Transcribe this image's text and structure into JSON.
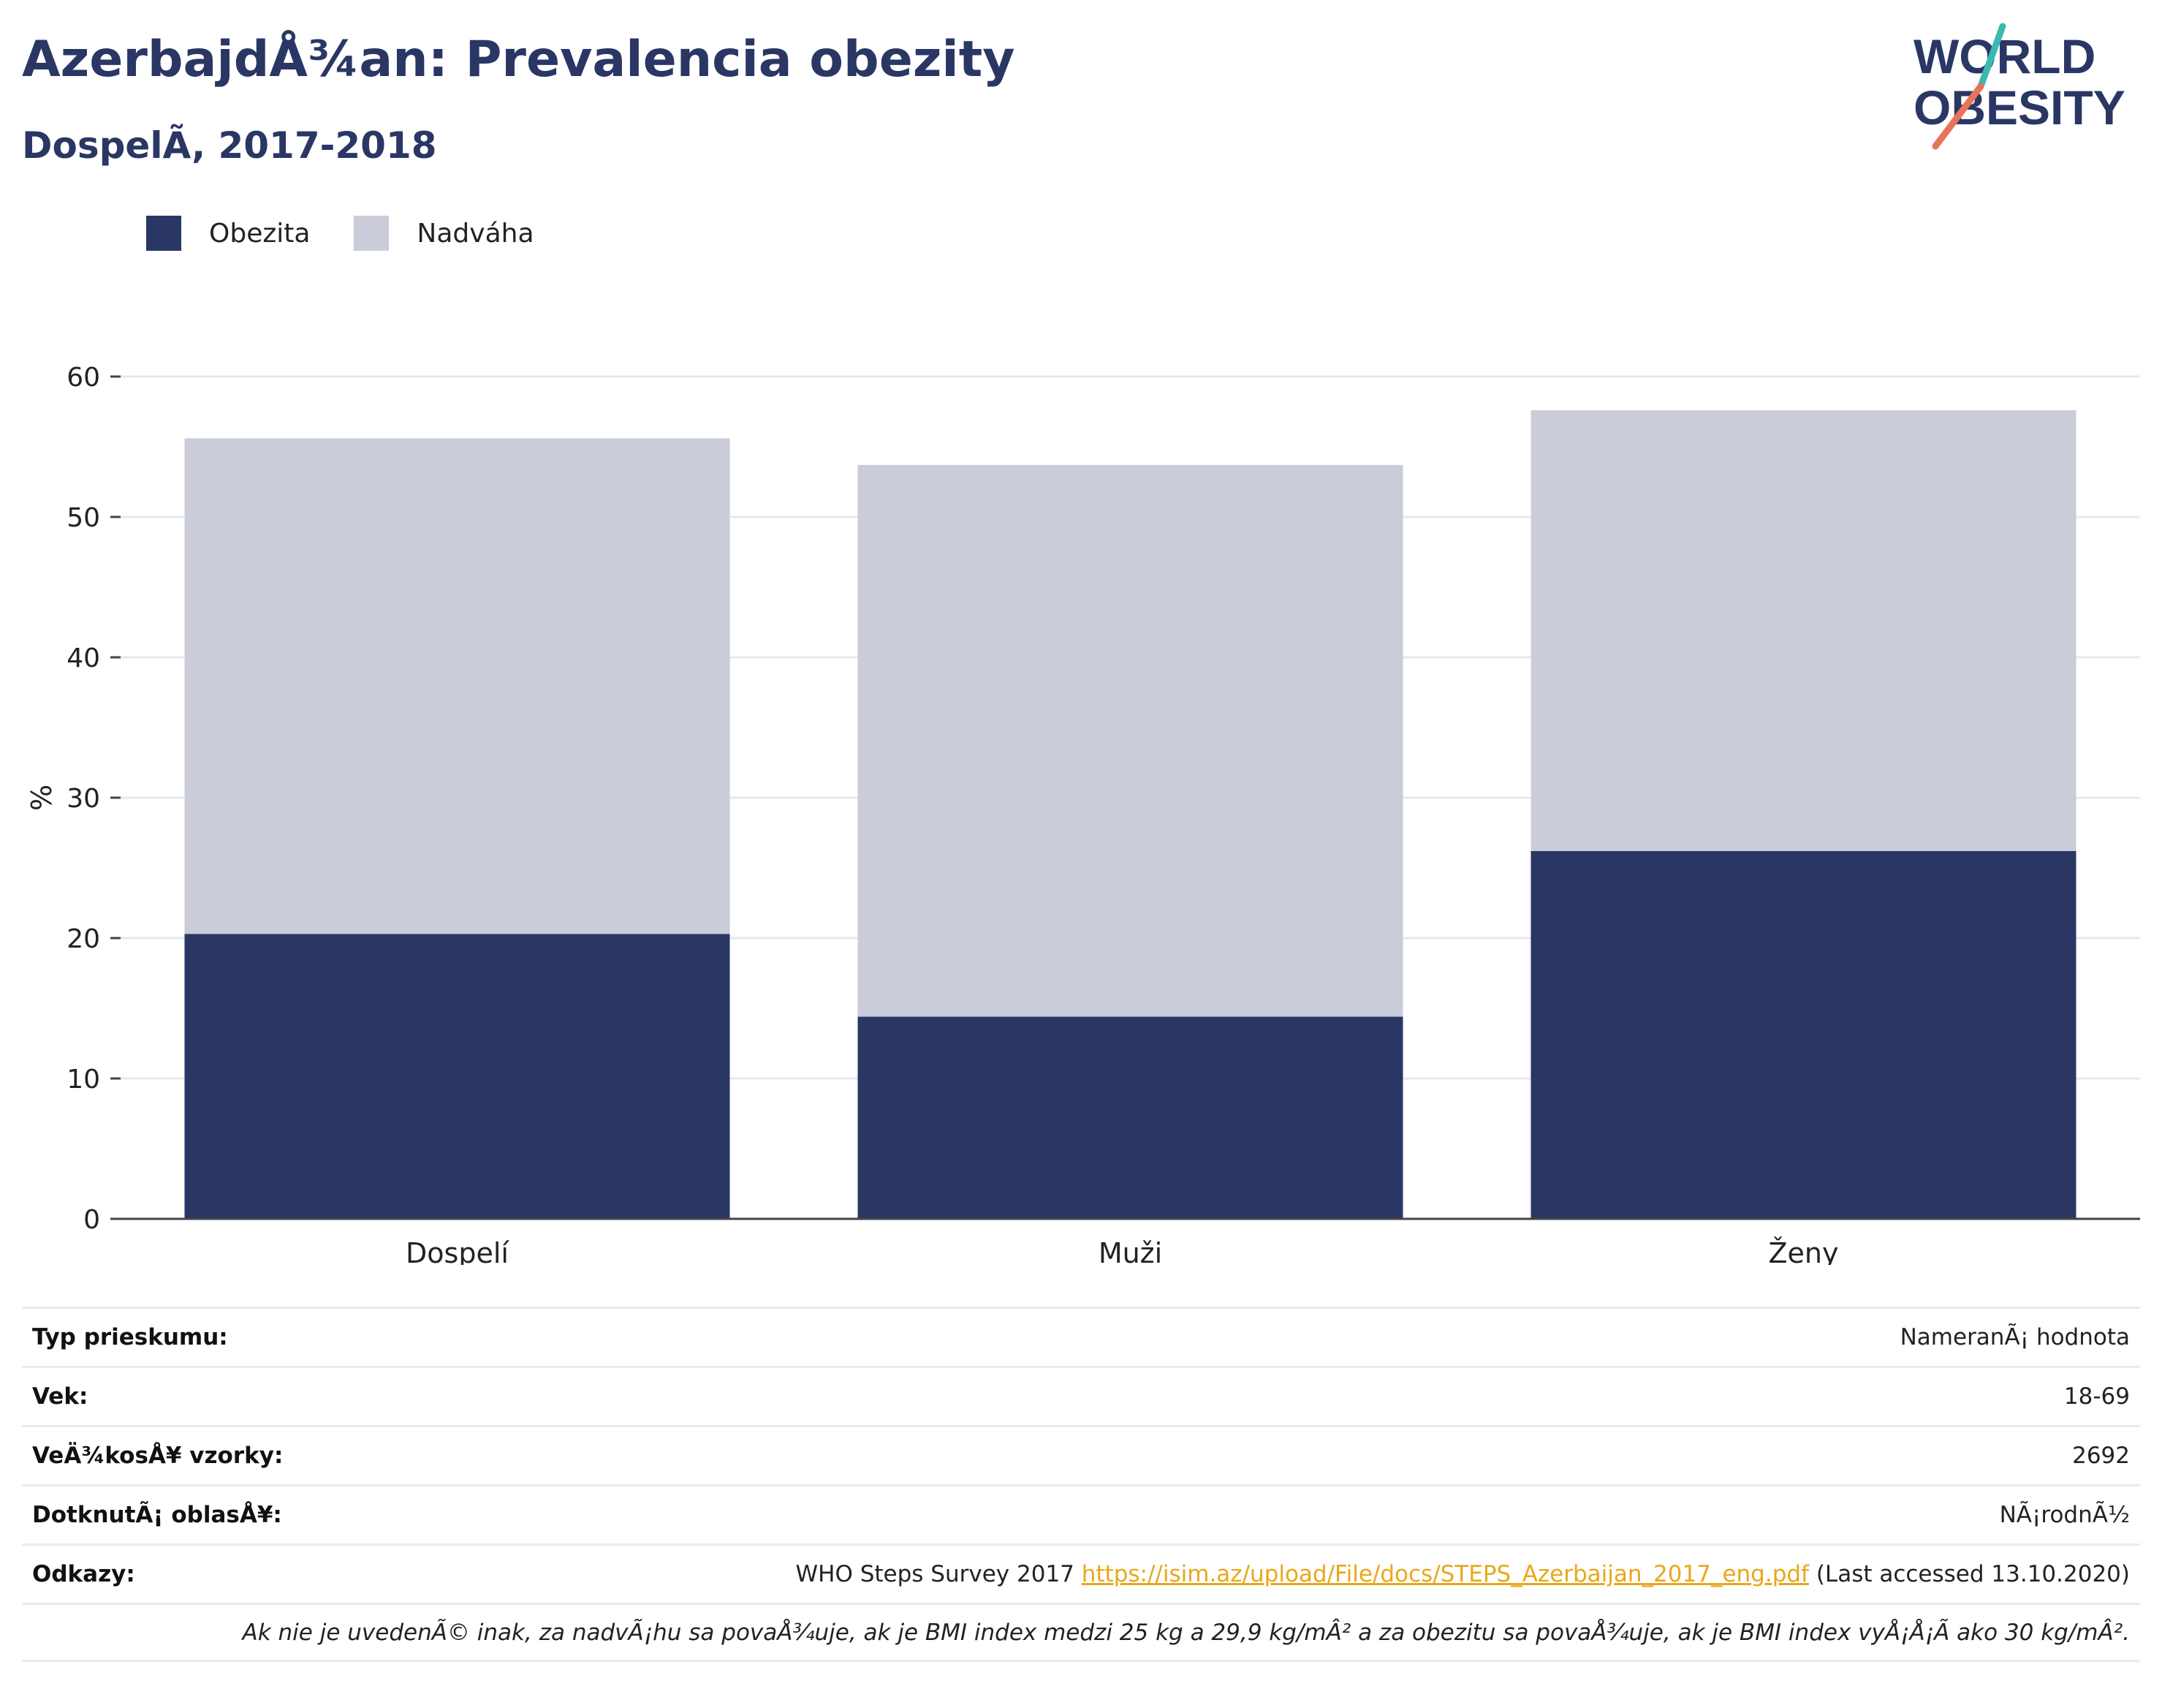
{
  "header": {
    "title": "AzerbajdÅ¾an: Prevalencia obezity",
    "subtitle": "DospelÃ­, 2017-2018"
  },
  "logo": {
    "line1": "WORLD",
    "line2": "OBESITY"
  },
  "colors": {
    "obesity": "#2a3764",
    "overweight": "#cacdd9",
    "title": "#2a3764",
    "link": "#e8a81a",
    "logo_teal": "#3bb8b0",
    "logo_coral": "#e8735a"
  },
  "chart_data": {
    "type": "bar",
    "stacked": true,
    "categories": [
      "Dospelí",
      "Muži",
      "Ženy"
    ],
    "series": [
      {
        "name": "Obezita",
        "values": [
          20.3,
          14.4,
          26.2
        ]
      },
      {
        "name": "Nadváha",
        "values": [
          35.3,
          39.3,
          31.4
        ]
      }
    ],
    "totals": [
      55.6,
      53.7,
      57.6
    ],
    "ylabel": "%",
    "ylim": [
      0,
      60
    ],
    "yticks": [
      0,
      10,
      20,
      30,
      40,
      50,
      60
    ],
    "grid": true,
    "legend_position": "top-left"
  },
  "info": {
    "survey_type": {
      "label": "Typ prieskumu:",
      "value": "NameranÃ¡ hodnota"
    },
    "age": {
      "label": "Vek:",
      "value": "18-69"
    },
    "sample_size": {
      "label": "VeÄ¾kosÅ¥ vzorky:",
      "value": "2692"
    },
    "area": {
      "label": "DotknutÃ¡ oblasÅ¥:",
      "value": "NÃ¡rodnÃ½"
    },
    "references": {
      "label": "Odkazy:",
      "prefix": "WHO Steps Survey 2017",
      "link": "https://isim.az/upload/File/docs/STEPS_Azerbaijan_2017_eng.pdf",
      "suffix": "(Last accessed 13.10.2020)"
    },
    "note": "Ak nie je uvedenÃ© inak, za nadvÃ¡hu sa povaÅ¾uje, ak je BMI index medzi 25 kg a 29,9 kg/mÂ² a za obezitu sa povaÅ¾uje, ak je BMI index vyÅ¡Å¡Ã­ ako 30 kg/mÂ²."
  }
}
